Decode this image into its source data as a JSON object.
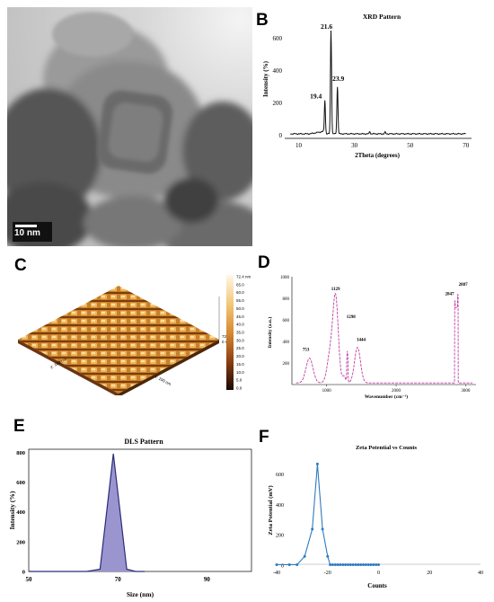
{
  "figure": {
    "panel_letters": [
      "A",
      "B",
      "C",
      "D",
      "E",
      "F"
    ]
  },
  "tem": {
    "scale_bar_label": "10 nm"
  },
  "xrd": {
    "chart_data": {
      "type": "line",
      "title": "XRD Pattern",
      "xlabel": "2Theta (degrees)",
      "ylabel": "Intensity (%)",
      "xlim": [
        5,
        72
      ],
      "ylim": [
        -20,
        680
      ],
      "x_ticks": [
        10,
        30,
        50,
        70
      ],
      "y_ticks": [
        0,
        200,
        400,
        600
      ],
      "peaks": [
        {
          "x": 19.4,
          "y": 210,
          "label": "19.4"
        },
        {
          "x": 21.6,
          "y": 640,
          "label": "21.6"
        },
        {
          "x": 23.9,
          "y": 290,
          "label": "23.9"
        }
      ],
      "color": "#111111"
    }
  },
  "afm": {
    "colorbar_ticks": [
      "72.4 nm",
      "65.0",
      "60.0",
      "55.0",
      "50.0",
      "45.0",
      "40.0",
      "35.0",
      "30.0",
      "25.0",
      "20.0",
      "15.0",
      "10.0",
      "5.0",
      "0.0"
    ],
    "z_axis_top": "72 nm",
    "z_axis_bottom": "0 nm",
    "x_axis_label": "y: 100 nm",
    "y_axis_label": "x: 100 nm"
  },
  "ftir": {
    "chart_data": {
      "type": "line",
      "xlabel": "Wavenumber (cm⁻¹)",
      "ylabel": "Intensity (a.u.)",
      "xlim": [
        500,
        3150
      ],
      "ylim": [
        0,
        1000
      ],
      "x_ticks": [
        1000,
        2000,
        3000
      ],
      "y_ticks": [
        200,
        400,
        600,
        800,
        1000
      ],
      "peaks": [
        {
          "x": 753,
          "y": 280,
          "label": "753"
        },
        {
          "x": 1129,
          "y": 840,
          "label": "1129"
        },
        {
          "x": 1298,
          "y": 500,
          "label": "1298"
        },
        {
          "x": 1444,
          "y": 370,
          "label": "1444"
        },
        {
          "x": 2847,
          "y": 780,
          "label": "2847"
        },
        {
          "x": 2887,
          "y": 850,
          "label": "2887"
        }
      ],
      "color": "#c040a0"
    }
  },
  "dls": {
    "chart_data": {
      "type": "area",
      "title": "DLS Pattern",
      "xlabel": "Size (nm)",
      "ylabel": "Intensity (%)",
      "xlim": [
        50,
        100
      ],
      "ylim": [
        0,
        820
      ],
      "x_ticks": [
        50,
        70,
        90
      ],
      "y_ticks": [
        0,
        200,
        400,
        600,
        800
      ],
      "x": [
        50,
        63,
        66,
        69,
        72,
        74,
        76
      ],
      "values": [
        0,
        0,
        15,
        790,
        15,
        0,
        0
      ],
      "color": "#9b95cf",
      "line_color": "#2b2b7a"
    }
  },
  "zeta": {
    "chart_data": {
      "type": "line",
      "title": "Zeta Potential vs Counts",
      "xlabel": "Counts",
      "ylabel": "Zeta Potential (mV)",
      "xlim": [
        -40,
        40
      ],
      "ylim": [
        -10,
        720
      ],
      "x_ticks": [
        -40,
        -20,
        0,
        20,
        40
      ],
      "y_ticks": [
        0,
        200,
        400,
        600
      ],
      "x": [
        -40,
        -35,
        -32,
        -29,
        -26,
        -24,
        -22,
        -20,
        -19,
        -18,
        -17,
        -16,
        -15,
        -14,
        -13,
        -12,
        -11,
        -10,
        -9,
        -8,
        -7,
        -6,
        -5,
        -4,
        -3,
        -2,
        -1,
        0
      ],
      "values": [
        5,
        5,
        5,
        60,
        240,
        670,
        240,
        60,
        5,
        5,
        5,
        5,
        5,
        5,
        5,
        5,
        5,
        5,
        5,
        5,
        5,
        5,
        5,
        5,
        5,
        5,
        5,
        5
      ],
      "color": "#2f7bbf"
    }
  }
}
